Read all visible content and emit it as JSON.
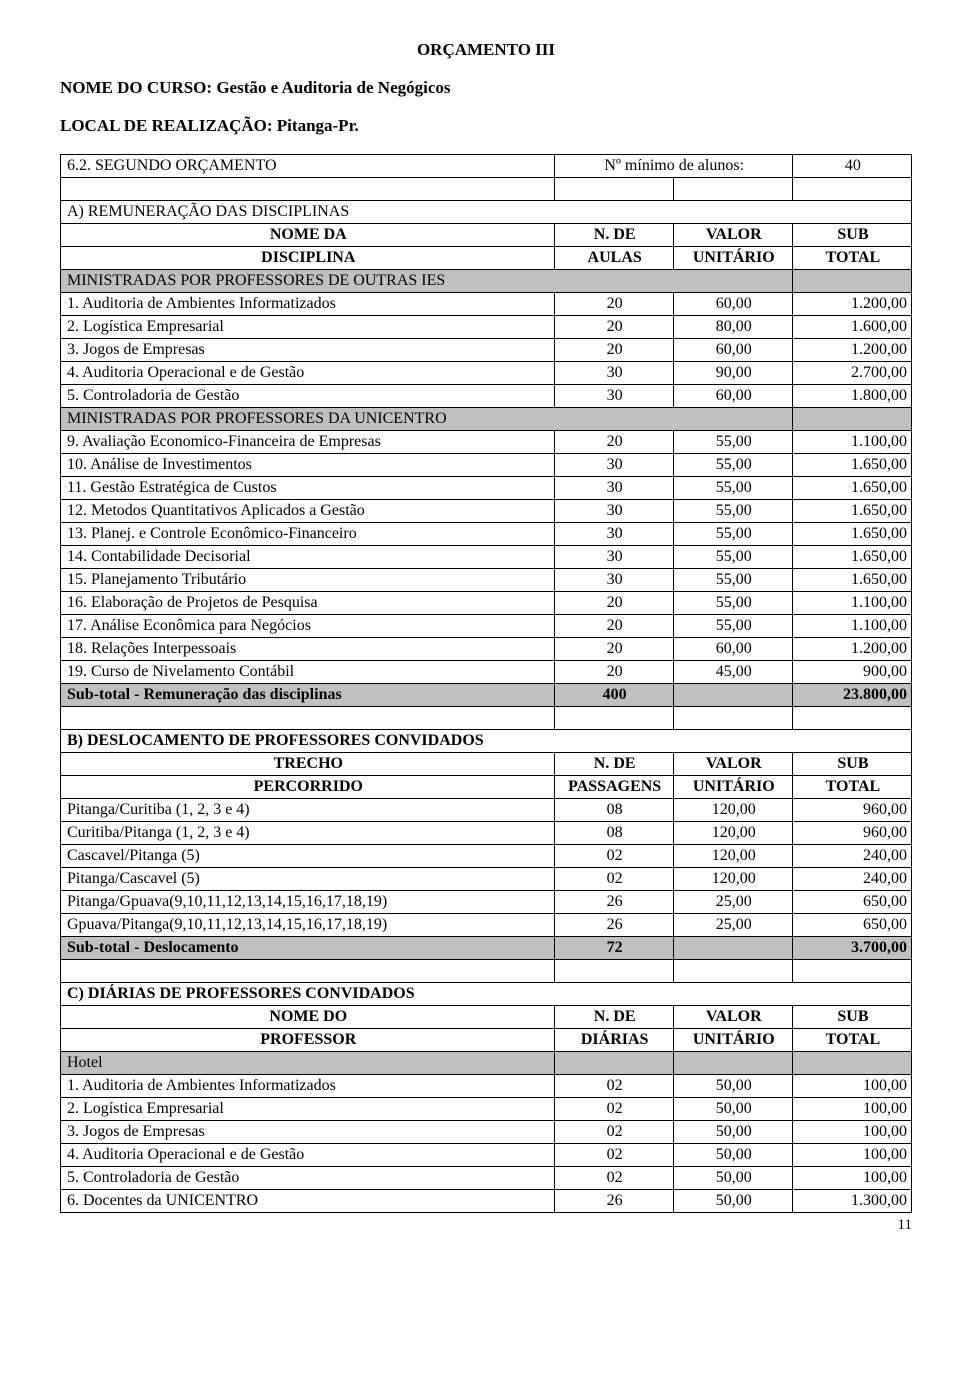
{
  "document_title": "ORÇAMENTO III",
  "course_label": "NOME DO CURSO:",
  "course_name": "Gestão e Auditoria de Negógicos",
  "loc_label": "LOCAL DE REALIZAÇÃO:",
  "loc_name": "Pitanga-Pr.",
  "page_number": "11",
  "sectionA": {
    "budget_line": {
      "label": "6.2. SEGUNDO ORÇAMENTO",
      "min_label": "Nº mínimo de alunos:",
      "min_value": "40"
    },
    "title": "A) REMUNERAÇÃO DAS DISCIPLINAS",
    "head": {
      "c0a": "NOME DA",
      "c0b": "DISCIPLINA",
      "c1a": "N. DE",
      "c1b": "AULAS",
      "c2a": "VALOR",
      "c2b": "UNITÁRIO",
      "c3a": "SUB",
      "c3b": "TOTAL"
    },
    "sub1_title": "MINISTRADAS POR PROFESSORES DE OUTRAS IES",
    "sub1_rows": [
      {
        "name": "1. Auditoria de Ambientes Informatizados",
        "n": "20",
        "v": "60,00",
        "s": "1.200,00"
      },
      {
        "name": "2. Logística Empresarial",
        "n": "20",
        "v": "80,00",
        "s": "1.600,00"
      },
      {
        "name": "3. Jogos de Empresas",
        "n": "20",
        "v": "60,00",
        "s": "1.200,00"
      },
      {
        "name": "4. Auditoria Operacional e de Gestão",
        "n": "30",
        "v": "90,00",
        "s": "2.700,00"
      },
      {
        "name": "5. Controladoria de Gestão",
        "n": "30",
        "v": "60,00",
        "s": "1.800,00"
      }
    ],
    "sub2_title": "MINISTRADAS POR PROFESSORES DA UNICENTRO",
    "sub2_rows": [
      {
        "name": "9. Avaliação Economico-Financeira de Empresas",
        "n": "20",
        "v": "55,00",
        "s": "1.100,00"
      },
      {
        "name": "10. Análise de Investimentos",
        "n": "30",
        "v": "55,00",
        "s": "1.650,00"
      },
      {
        "name": "11. Gestão Estratégica de Custos",
        "n": "30",
        "v": "55,00",
        "s": "1.650,00"
      },
      {
        "name": "12. Metodos Quantitativos Aplicados a Gestão",
        "n": "30",
        "v": "55,00",
        "s": "1.650,00"
      },
      {
        "name": "13. Planej. e Controle Econômico-Financeiro",
        "n": "30",
        "v": "55,00",
        "s": "1.650,00"
      },
      {
        "name": "14. Contabilidade Decisorial",
        "n": "30",
        "v": "55,00",
        "s": "1.650,00"
      },
      {
        "name": "15. Planejamento Tributário",
        "n": "30",
        "v": "55,00",
        "s": "1.650,00"
      },
      {
        "name": "16. Elaboração de Projetos de Pesquisa",
        "n": "20",
        "v": "55,00",
        "s": "1.100,00"
      },
      {
        "name": "17. Análise Econômica para Negócios",
        "n": "20",
        "v": "55,00",
        "s": "1.100,00"
      },
      {
        "name": "18. Relações Interpessoais",
        "n": "20",
        "v": "60,00",
        "s": "1.200,00"
      },
      {
        "name": "19. Curso de Nivelamento Contábil",
        "n": "20",
        "v": "45,00",
        "s": "900,00"
      }
    ],
    "subtotal": {
      "label": "Sub-total - Remuneração das disciplinas",
      "n": "400",
      "s": "23.800,00"
    }
  },
  "sectionB": {
    "title": "B) DESLOCAMENTO DE PROFESSORES CONVIDADOS",
    "head": {
      "c0a": "TRECHO",
      "c0b": "PERCORRIDO",
      "c1a": "N. DE",
      "c1b": "PASSAGENS",
      "c2a": "VALOR",
      "c2b": "UNITÁRIO",
      "c3a": "SUB",
      "c3b": "TOTAL"
    },
    "rows": [
      {
        "name": "Pitanga/Curitiba (1, 2, 3 e 4)",
        "n": "08",
        "v": "120,00",
        "s": "960,00"
      },
      {
        "name": "Curitiba/Pitanga (1, 2, 3 e 4)",
        "n": "08",
        "v": "120,00",
        "s": "960,00"
      },
      {
        "name": "Cascavel/Pitanga (5)",
        "n": "02",
        "v": "120,00",
        "s": "240,00"
      },
      {
        "name": "Pitanga/Cascavel (5)",
        "n": "02",
        "v": "120,00",
        "s": "240,00"
      },
      {
        "name": "Pitanga/Gpuava(9,10,11,12,13,14,15,16,17,18,19)",
        "n": "26",
        "v": "25,00",
        "s": "650,00"
      },
      {
        "name": "Gpuava/Pitanga(9,10,11,12,13,14,15,16,17,18,19)",
        "n": "26",
        "v": "25,00",
        "s": "650,00"
      }
    ],
    "subtotal": {
      "label": "Sub-total - Deslocamento",
      "n": "72",
      "s": "3.700,00"
    }
  },
  "sectionC": {
    "title": "C) DIÁRIAS DE PROFESSORES CONVIDADOS",
    "head": {
      "c0a": "NOME DO",
      "c0b": "PROFESSOR",
      "c1a": "N. DE",
      "c1b": "DIÁRIAS",
      "c2a": "VALOR",
      "c2b": "UNITÁRIO",
      "c3a": "SUB",
      "c3b": "TOTAL"
    },
    "hotel_label": "Hotel",
    "rows": [
      {
        "name": "1. Auditoria de Ambientes Informatizados",
        "n": "02",
        "v": "50,00",
        "s": "100,00"
      },
      {
        "name": "2. Logística Empresarial",
        "n": "02",
        "v": "50,00",
        "s": "100,00"
      },
      {
        "name": "3. Jogos de Empresas",
        "n": "02",
        "v": "50,00",
        "s": "100,00"
      },
      {
        "name": "4. Auditoria Operacional e de Gestão",
        "n": "02",
        "v": "50,00",
        "s": "100,00"
      },
      {
        "name": "5. Controladoria de Gestão",
        "n": "02",
        "v": "50,00",
        "s": "100,00"
      },
      {
        "name": "6. Docentes da UNICENTRO",
        "n": "26",
        "v": "50,00",
        "s": "1.300,00"
      }
    ]
  }
}
